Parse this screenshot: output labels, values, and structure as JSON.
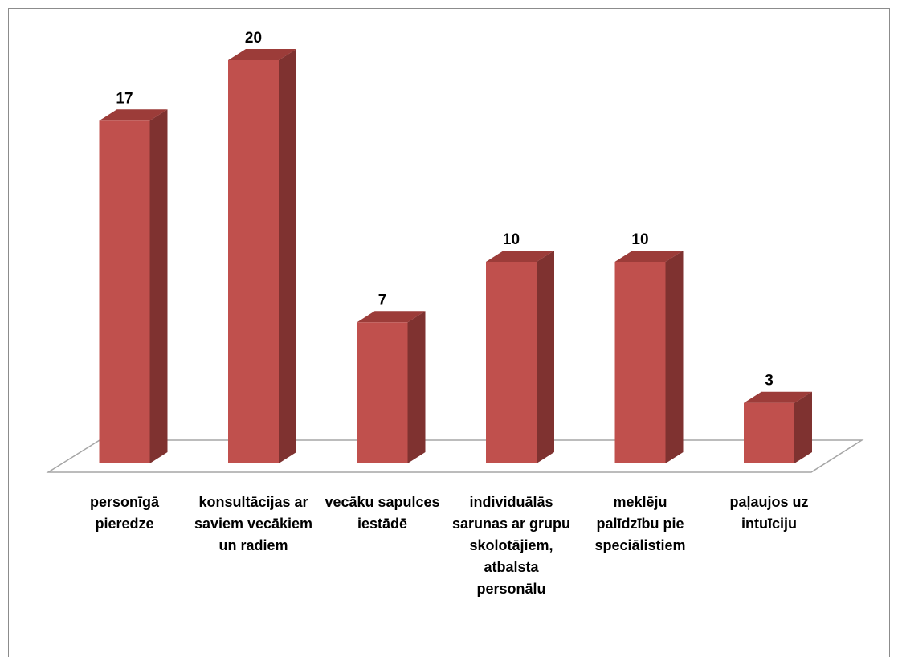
{
  "chart_data": {
    "type": "bar3d",
    "categories": [
      "personīgā pieredze",
      "konsultācijas ar saviem vecākiem un radiem",
      "vecāku sapulces iestādē",
      "individuālās sarunas ar grupu skolotājiem, atbalsta personālu",
      "meklēju palīdzību pie speciālistiem",
      "paļaujos uz intuīciju"
    ],
    "values": [
      17,
      20,
      7,
      10,
      10,
      3
    ],
    "color": "#c0504d"
  }
}
